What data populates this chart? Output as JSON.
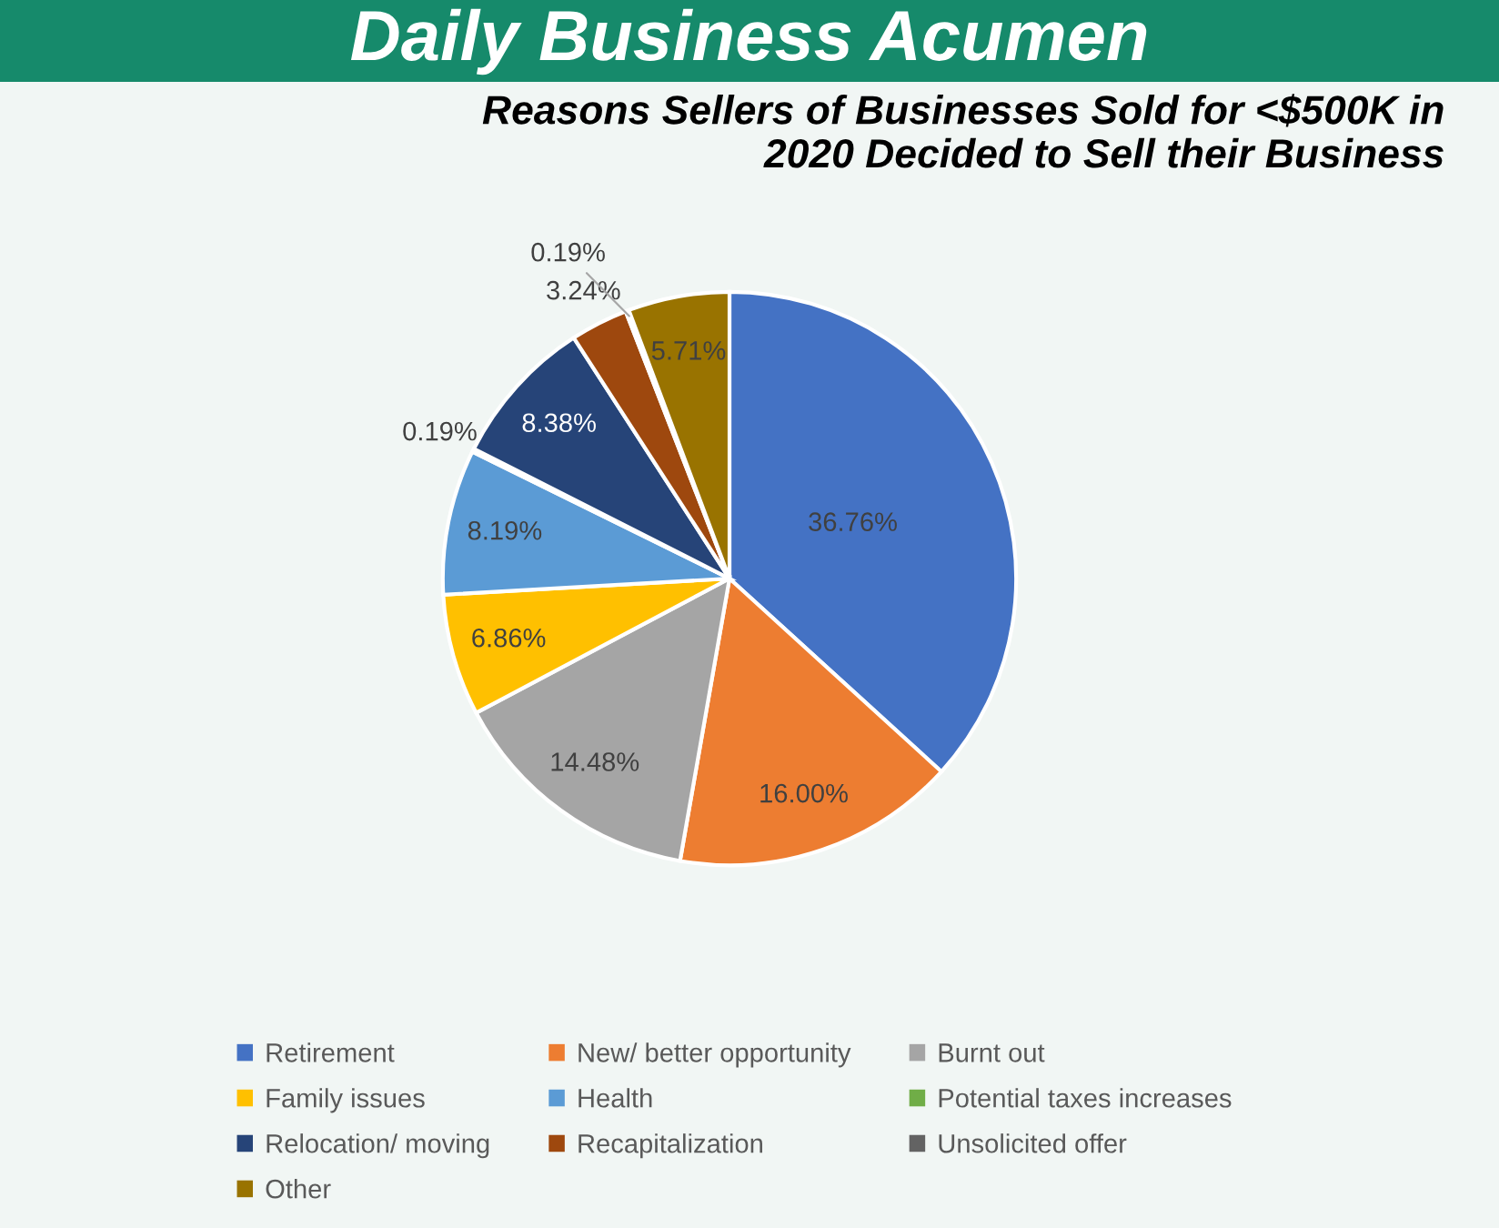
{
  "chart_data": {
    "type": "pie",
    "title": "Daily Business Acumen",
    "subtitle": "Reasons Sellers of Businesses Sold for <$500K in 2020 Decided to Sell their Business",
    "categories": [
      "Retirement",
      "New/ better opportunity",
      "Burnt out",
      "Family issues",
      "Health",
      "Potential taxes increases",
      "Relocation/ moving",
      "Recapitalization",
      "Unsolicited offer",
      "Other"
    ],
    "values": [
      36.76,
      16.0,
      14.48,
      6.86,
      8.19,
      0.19,
      8.38,
      3.24,
      0.19,
      5.71
    ],
    "colors": [
      "#4472c4",
      "#ed7d31",
      "#a5a5a5",
      "#ffc000",
      "#5b9bd5",
      "#70ad47",
      "#264478",
      "#9e480e",
      "#636363",
      "#997300"
    ],
    "value_labels": [
      "36.76%",
      "16.00%",
      "14.48%",
      "6.86%",
      "8.19%",
      "0.19%",
      "8.38%",
      "3.24%",
      "0.19%",
      "5.71%"
    ],
    "legend": "bottom"
  }
}
